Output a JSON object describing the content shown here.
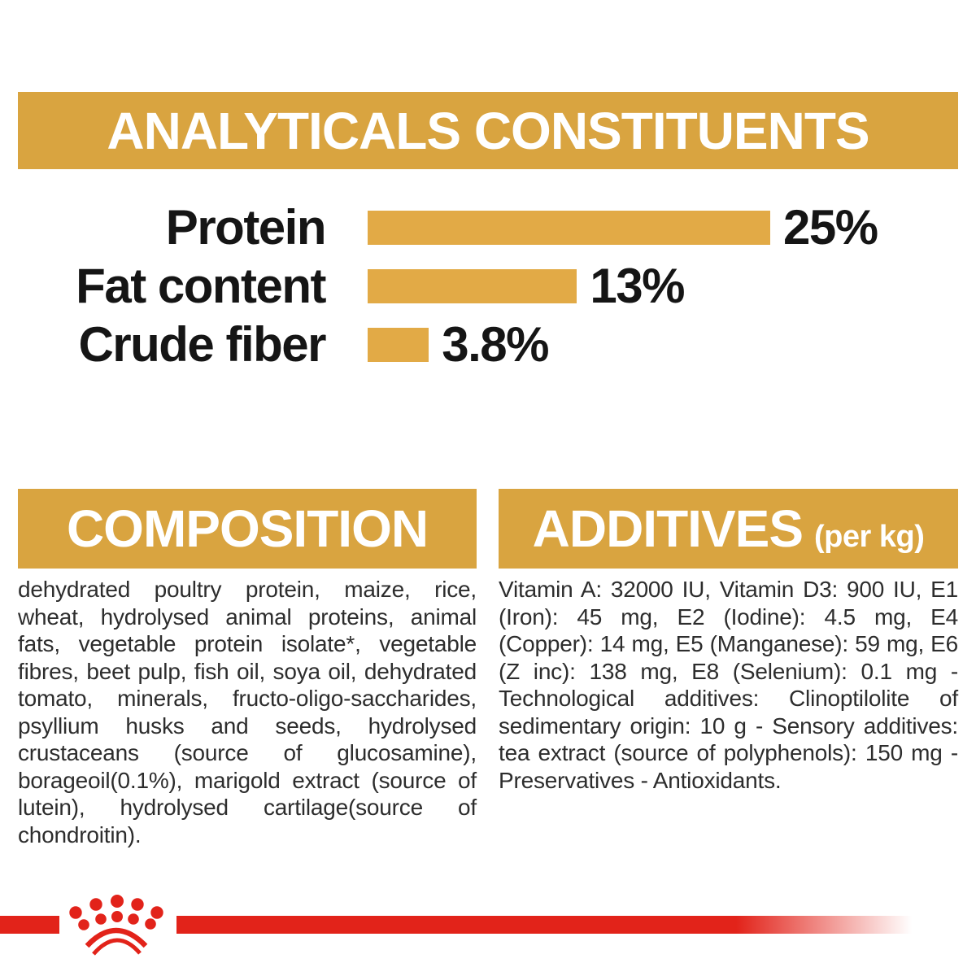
{
  "colors": {
    "gold": "#D9A440",
    "red": "#E2231A",
    "heading_text": "#FFFFFF",
    "chart_text": "#151515",
    "body_text": "#2D2D2D"
  },
  "header": {
    "title": "ANALYTICALS CONSTITUENTS"
  },
  "chart_data": {
    "type": "bar",
    "orientation": "horizontal",
    "title": "ANALYTICALS CONSTITUENTS",
    "categories": [
      "Protein",
      "Fat content",
      "Crude fiber"
    ],
    "values": [
      25,
      13,
      3.8
    ],
    "value_labels": [
      "25%",
      "13%",
      "3.8%"
    ],
    "unit": "%",
    "xlim": [
      0,
      25
    ],
    "bar_color": "#E2AA46",
    "grid": false,
    "legend": false
  },
  "composition": {
    "heading": "COMPOSITION",
    "body": "dehydrated poultry protein, maize, rice, wheat, hydrolysed animal proteins, animal fats, vegetable protein isolate*, vegetable fibres, beet pulp, fish oil, soya oil, dehydrated tomato, minerals, fructo-oligo-saccharides, psyllium husks and seeds, hydrolysed crustaceans (source of glucosamine), borageoil(0.1%), marigold extract (source of lutein), hydrolysed cartilage(source of chondroitin)."
  },
  "additives": {
    "heading": "ADDITIVES",
    "heading_suffix": "(per kg)",
    "body": "Vitamin A: 32000 IU, Vitamin D3: 900 IU, E1 (Iron): 45 mg, E2 (Iodine): 4.5 mg, E4 (Copper): 14 mg, E5 (Manganese): 59 mg, E6 (Z inc): 138 mg, E8 (Selenium): 0.1 mg - Technological additives: Clinoptilolite of sedimentary origin: 10 g - Sensory additives: tea extract (source of polyphenols): 150 mg - Preservatives - Antioxidants."
  },
  "footer": {
    "brand_logo": "royal-canin-crown"
  }
}
